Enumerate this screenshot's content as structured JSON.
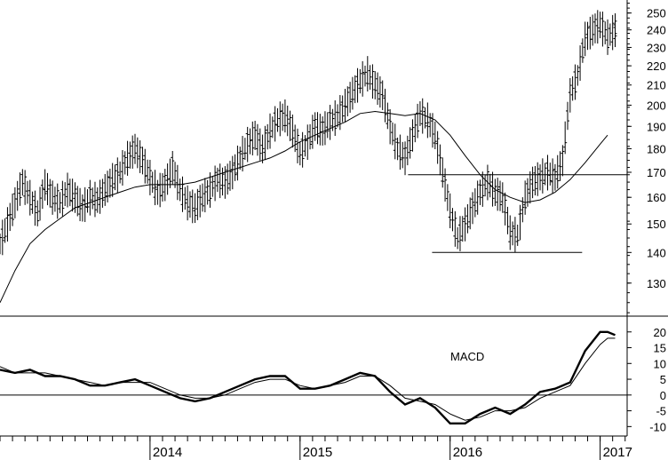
{
  "chart_data": [
    {
      "type": "bar-ohlc",
      "panel": "price",
      "y_scale": "log",
      "ylim": [
        120,
        258
      ],
      "yticks": [
        130,
        140,
        150,
        160,
        170,
        180,
        190,
        200,
        210,
        220,
        230,
        240,
        250
      ],
      "xlim": [
        2013.0,
        2017.18
      ],
      "series": [
        {
          "kind": "weekly-bars",
          "points": [
            [
              2013.0,
              143
            ],
            [
              2013.05,
              150
            ],
            [
              2013.1,
              158
            ],
            [
              2013.15,
              166
            ],
            [
              2013.2,
              160
            ],
            [
              2013.25,
              154
            ],
            [
              2013.3,
              165
            ],
            [
              2013.35,
              160
            ],
            [
              2013.4,
              158
            ],
            [
              2013.45,
              163
            ],
            [
              2013.5,
              160
            ],
            [
              2013.55,
              156
            ],
            [
              2013.6,
              160
            ],
            [
              2013.65,
              159
            ],
            [
              2013.7,
              163
            ],
            [
              2013.75,
              167
            ],
            [
              2013.8,
              170
            ],
            [
              2013.85,
              176
            ],
            [
              2013.9,
              180
            ],
            [
              2013.95,
              175
            ],
            [
              2014.0,
              168
            ],
            [
              2014.05,
              162
            ],
            [
              2014.1,
              165
            ],
            [
              2014.15,
              172
            ],
            [
              2014.2,
              163
            ],
            [
              2014.25,
              158
            ],
            [
              2014.3,
              156
            ],
            [
              2014.35,
              160
            ],
            [
              2014.4,
              163
            ],
            [
              2014.45,
              167
            ],
            [
              2014.5,
              166
            ],
            [
              2014.55,
              170
            ],
            [
              2014.6,
              176
            ],
            [
              2014.65,
              182
            ],
            [
              2014.7,
              186
            ],
            [
              2014.75,
              180
            ],
            [
              2014.8,
              188
            ],
            [
              2014.85,
              193
            ],
            [
              2014.9,
              195
            ],
            [
              2014.95,
              188
            ],
            [
              2015.0,
              178
            ],
            [
              2015.05,
              183
            ],
            [
              2015.1,
              190
            ],
            [
              2015.15,
              188
            ],
            [
              2015.2,
              192
            ],
            [
              2015.25,
              195
            ],
            [
              2015.3,
              200
            ],
            [
              2015.35,
              206
            ],
            [
              2015.4,
              212
            ],
            [
              2015.45,
              216
            ],
            [
              2015.5,
              210
            ],
            [
              2015.55,
              205
            ],
            [
              2015.6,
              190
            ],
            [
              2015.65,
              180
            ],
            [
              2015.7,
              176
            ],
            [
              2015.75,
              186
            ],
            [
              2015.8,
              196
            ],
            [
              2015.85,
              193
            ],
            [
              2015.9,
              186
            ],
            [
              2015.95,
              170
            ],
            [
              2016.0,
              155
            ],
            [
              2016.05,
              145
            ],
            [
              2016.1,
              150
            ],
            [
              2016.15,
              156
            ],
            [
              2016.2,
              162
            ],
            [
              2016.25,
              166
            ],
            [
              2016.3,
              162
            ],
            [
              2016.35,
              160
            ],
            [
              2016.4,
              147
            ],
            [
              2016.45,
              146
            ],
            [
              2016.5,
              160
            ],
            [
              2016.55,
              166
            ],
            [
              2016.6,
              168
            ],
            [
              2016.65,
              170
            ],
            [
              2016.7,
              168
            ],
            [
              2016.75,
              175
            ],
            [
              2016.8,
              205
            ],
            [
              2016.85,
              215
            ],
            [
              2016.9,
              235
            ],
            [
              2016.95,
              240
            ],
            [
              2017.0,
              243
            ],
            [
              2017.05,
              236
            ],
            [
              2017.1,
              240
            ]
          ]
        },
        {
          "kind": "moving-average",
          "points": [
            [
              2013.0,
              124
            ],
            [
              2013.1,
              134
            ],
            [
              2013.2,
              143
            ],
            [
              2013.3,
              148
            ],
            [
              2013.4,
              152
            ],
            [
              2013.5,
              156
            ],
            [
              2013.6,
              158
            ],
            [
              2013.7,
              160
            ],
            [
              2013.8,
              162
            ],
            [
              2013.9,
              164
            ],
            [
              2014.0,
              165
            ],
            [
              2014.1,
              165
            ],
            [
              2014.2,
              165
            ],
            [
              2014.3,
              166
            ],
            [
              2014.4,
              168
            ],
            [
              2014.5,
              170
            ],
            [
              2014.6,
              172
            ],
            [
              2014.7,
              174
            ],
            [
              2014.8,
              176
            ],
            [
              2014.9,
              179
            ],
            [
              2015.0,
              183
            ],
            [
              2015.1,
              186
            ],
            [
              2015.2,
              189
            ],
            [
              2015.3,
              192
            ],
            [
              2015.4,
              196
            ],
            [
              2015.5,
              197
            ],
            [
              2015.6,
              196
            ],
            [
              2015.7,
              195
            ],
            [
              2015.8,
              196
            ],
            [
              2015.9,
              193
            ],
            [
              2016.0,
              186
            ],
            [
              2016.1,
              177
            ],
            [
              2016.2,
              169
            ],
            [
              2016.3,
              163
            ],
            [
              2016.4,
              160
            ],
            [
              2016.5,
              158
            ],
            [
              2016.6,
              159
            ],
            [
              2016.7,
              162
            ],
            [
              2016.8,
              167
            ],
            [
              2016.9,
              174
            ],
            [
              2017.0,
              182
            ],
            [
              2017.05,
              186
            ]
          ]
        }
      ],
      "horizontal_lines": [
        {
          "y": 169,
          "x_from": 2015.72,
          "x_to": 2017.18
        },
        {
          "y": 140,
          "x_from": 2015.88,
          "x_to": 2016.88
        }
      ]
    },
    {
      "type": "line",
      "panel": "indicator",
      "label": "MACD",
      "ylim": [
        -13,
        25
      ],
      "yticks": [
        -10,
        -5,
        0,
        5,
        10,
        15,
        20
      ],
      "series": [
        {
          "style": "thick",
          "points": [
            [
              2013.0,
              8
            ],
            [
              2013.1,
              7
            ],
            [
              2013.2,
              8
            ],
            [
              2013.3,
              6
            ],
            [
              2013.4,
              6
            ],
            [
              2013.5,
              5
            ],
            [
              2013.6,
              3
            ],
            [
              2013.7,
              3
            ],
            [
              2013.8,
              4
            ],
            [
              2013.9,
              5
            ],
            [
              2014.0,
              3
            ],
            [
              2014.1,
              1
            ],
            [
              2014.2,
              -1
            ],
            [
              2014.3,
              -2
            ],
            [
              2014.4,
              -1
            ],
            [
              2014.5,
              1
            ],
            [
              2014.6,
              3
            ],
            [
              2014.7,
              5
            ],
            [
              2014.8,
              6
            ],
            [
              2014.9,
              6
            ],
            [
              2015.0,
              2
            ],
            [
              2015.1,
              2
            ],
            [
              2015.2,
              3
            ],
            [
              2015.3,
              5
            ],
            [
              2015.4,
              7
            ],
            [
              2015.5,
              6
            ],
            [
              2015.6,
              1
            ],
            [
              2015.7,
              -3
            ],
            [
              2015.8,
              -1
            ],
            [
              2015.9,
              -4
            ],
            [
              2016.0,
              -9
            ],
            [
              2016.1,
              -9
            ],
            [
              2016.2,
              -6
            ],
            [
              2016.3,
              -4
            ],
            [
              2016.4,
              -6
            ],
            [
              2016.5,
              -3
            ],
            [
              2016.6,
              1
            ],
            [
              2016.7,
              2
            ],
            [
              2016.8,
              4
            ],
            [
              2016.9,
              14
            ],
            [
              2017.0,
              20
            ],
            [
              2017.05,
              20
            ],
            [
              2017.1,
              19
            ]
          ]
        },
        {
          "style": "thin",
          "points": [
            [
              2013.0,
              9
            ],
            [
              2013.1,
              7
            ],
            [
              2013.2,
              7
            ],
            [
              2013.3,
              7
            ],
            [
              2013.4,
              6
            ],
            [
              2013.5,
              5
            ],
            [
              2013.6,
              4
            ],
            [
              2013.7,
              3
            ],
            [
              2013.8,
              4
            ],
            [
              2013.9,
              4
            ],
            [
              2014.0,
              4
            ],
            [
              2014.1,
              2
            ],
            [
              2014.2,
              0
            ],
            [
              2014.3,
              -1
            ],
            [
              2014.4,
              -1
            ],
            [
              2014.5,
              0
            ],
            [
              2014.6,
              2
            ],
            [
              2014.7,
              4
            ],
            [
              2014.8,
              5
            ],
            [
              2014.9,
              5
            ],
            [
              2015.0,
              3
            ],
            [
              2015.1,
              2
            ],
            [
              2015.2,
              3
            ],
            [
              2015.3,
              4
            ],
            [
              2015.4,
              6
            ],
            [
              2015.5,
              6
            ],
            [
              2015.6,
              3
            ],
            [
              2015.7,
              -1
            ],
            [
              2015.8,
              -2
            ],
            [
              2015.9,
              -3
            ],
            [
              2016.0,
              -6
            ],
            [
              2016.1,
              -8
            ],
            [
              2016.2,
              -7
            ],
            [
              2016.3,
              -5
            ],
            [
              2016.4,
              -5
            ],
            [
              2016.5,
              -4
            ],
            [
              2016.6,
              -1
            ],
            [
              2016.7,
              1
            ],
            [
              2016.8,
              3
            ],
            [
              2016.9,
              10
            ],
            [
              2017.0,
              16
            ],
            [
              2017.05,
              18
            ],
            [
              2017.1,
              18
            ]
          ]
        }
      ],
      "zero_line": true
    }
  ],
  "x_axis": {
    "year_labels": [
      "2014",
      "2015",
      "2016",
      "2017"
    ],
    "year_positions": [
      2014.0,
      2015.0,
      2016.0,
      2017.0
    ]
  }
}
